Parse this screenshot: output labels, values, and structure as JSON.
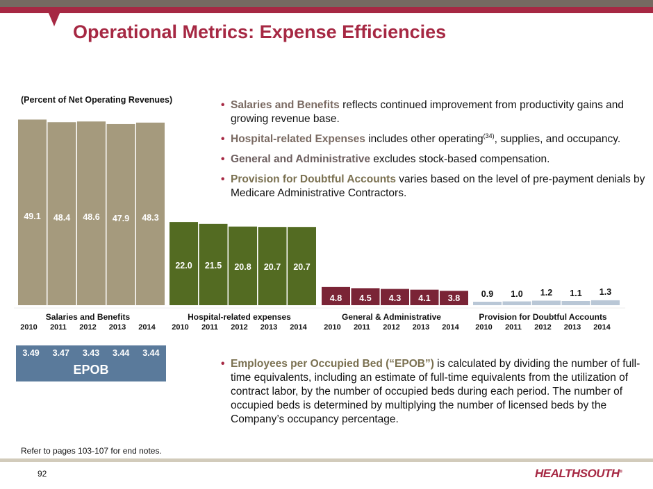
{
  "header": {
    "title": "Operational Metrics: Expense Efficiencies"
  },
  "colors": {
    "brand_red": "#a62843",
    "band_grey": "#756961"
  },
  "chart_data": {
    "type": "bar",
    "title": "Operational Metrics: Expense Efficiencies",
    "subtitle": "(Percent of Net Operating Revenues)",
    "xlabel": "",
    "ylabel": "",
    "years": [
      "2010",
      "2011",
      "2012",
      "2013",
      "2014"
    ],
    "groups": [
      {
        "name": "Salaries and Benefits",
        "color": "#a59a7d",
        "label_color": "#ffffff",
        "values": [
          49.1,
          48.4,
          48.6,
          47.9,
          48.3
        ],
        "value_labels": [
          "49.1",
          "48.4",
          "48.6",
          "47.9",
          "48.3"
        ]
      },
      {
        "name": "Hospital-related expenses",
        "color": "#536b22",
        "label_color": "#ffffff",
        "values": [
          22.0,
          21.5,
          20.8,
          20.7,
          20.7
        ],
        "value_labels": [
          "22.0",
          "21.5",
          "20.8",
          "20.7",
          "20.7"
        ]
      },
      {
        "name": "General & Administrative",
        "color": "#7a2436",
        "label_color": "#ffffff",
        "values": [
          4.8,
          4.5,
          4.3,
          4.1,
          3.8
        ],
        "value_labels": [
          "4.8",
          "4.5",
          "4.3",
          "4.1",
          "3.8"
        ]
      },
      {
        "name": "Provision for Doubtful Accounts",
        "color": "#b9c7d6",
        "label_color": "#111111",
        "values": [
          0.9,
          1.0,
          1.2,
          1.1,
          1.3
        ],
        "value_labels": [
          "0.9",
          "1.0",
          "1.2",
          "1.1",
          "1.3"
        ]
      }
    ],
    "epob": {
      "label": "EPOB",
      "values": [
        "3.49",
        "3.47",
        "3.43",
        "3.44",
        "3.44"
      ]
    },
    "grid": false,
    "legend": "none"
  },
  "bullets": [
    {
      "lead": "Salaries and Benefits",
      "lead_color": "#7a6a62",
      "text": " reflects continued improvement from productivity gains and growing revenue base."
    },
    {
      "lead": "Hospital-related Expenses",
      "lead_color": "#7a6a62",
      "text_before": " includes other operating",
      "sup": "(34)",
      "text_after": ", supplies, and occupancy."
    },
    {
      "lead": "General and Administrative",
      "lead_color": "#6e6060",
      "text": " excludes stock-based compensation."
    },
    {
      "lead": "Provision for Doubtful Accounts",
      "lead_color": "#7a7050",
      "text": " varies based on the level of pre-payment denials by Medicare Administrative Contractors."
    }
  ],
  "epob_bullet": {
    "lead": "Employees per Occupied Bed (“EPOB”)",
    "lead_color": "#7a7050",
    "text": " is calculated by dividing the number of full-time equivalents, including an estimate of full-time equivalents from the utilization of contract labor, by the number of occupied beds during each period. The number of occupied beds is determined by multiplying the number of licensed beds by the Company’s occupancy percentage."
  },
  "footer": {
    "endnote": "Refer to pages 103-107 for end notes.",
    "page_number": "92",
    "logo": "HEALTHSOUTH",
    "logo_mark": "®"
  }
}
